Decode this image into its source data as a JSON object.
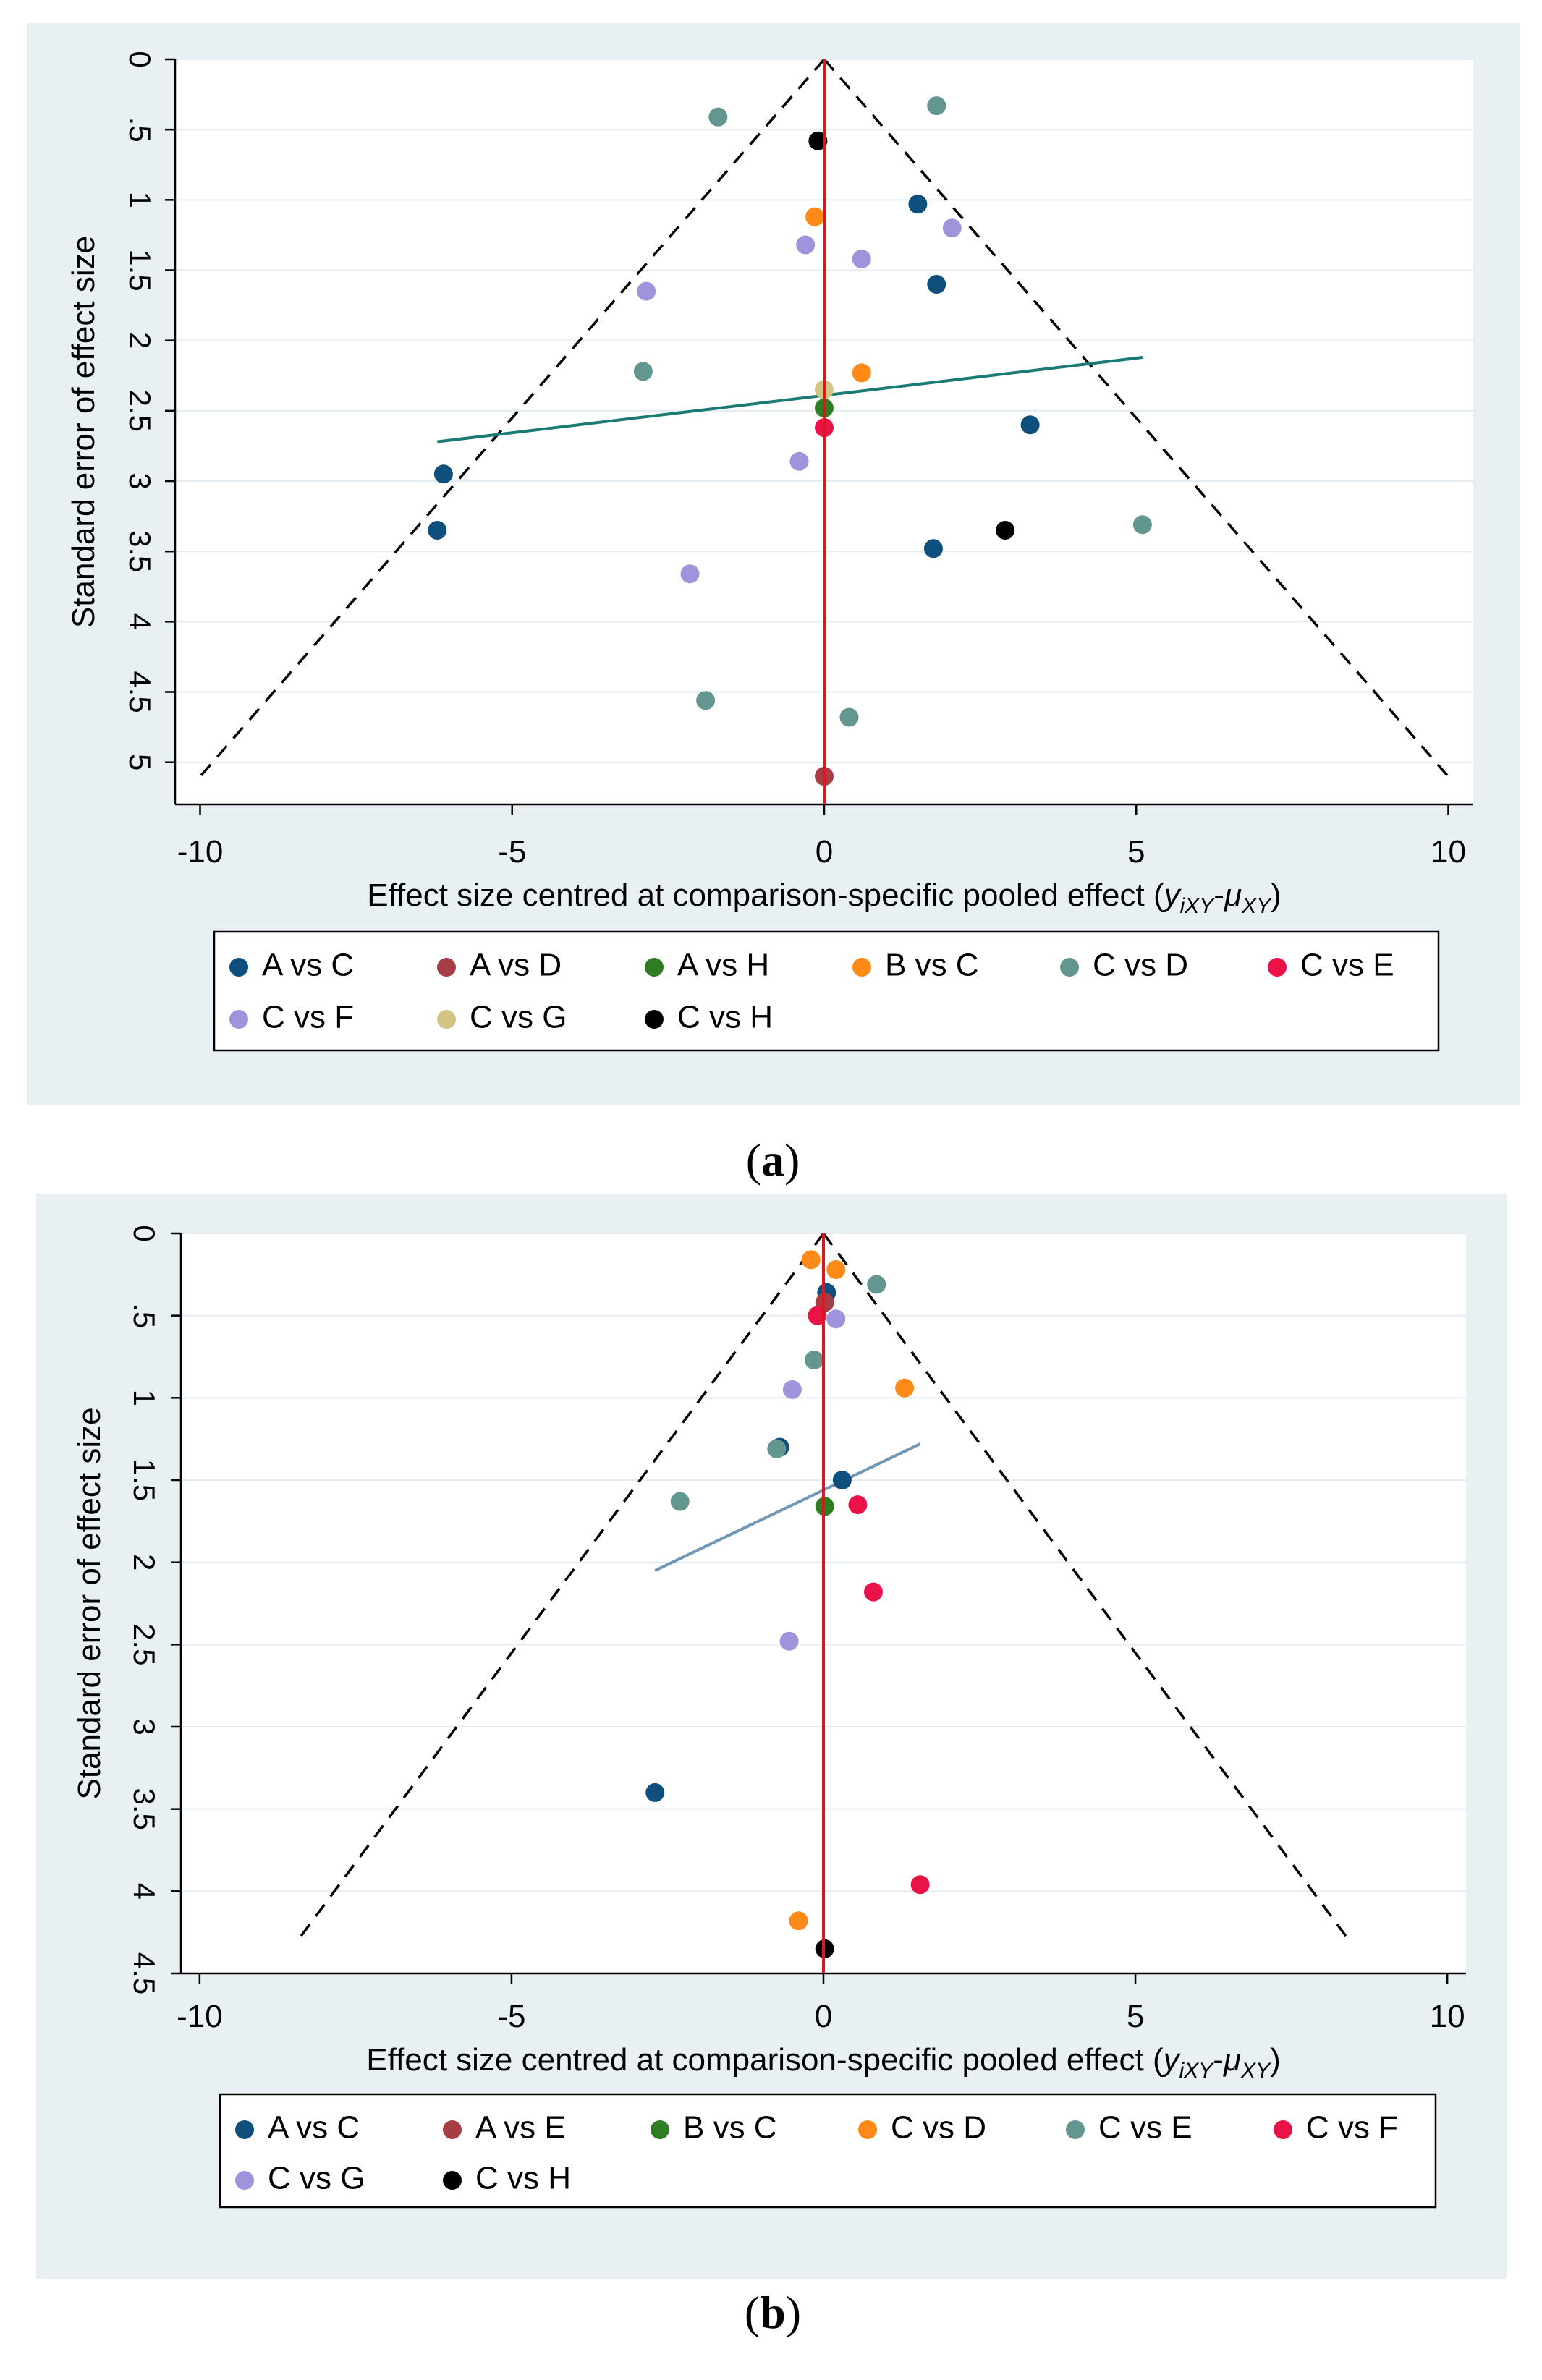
{
  "colors": {
    "panel_bg": "#e8f0f4",
    "plot_bg": "#ffffff",
    "gridline": "#e3ebf1",
    "axis": "#000000",
    "funnel": "#000000",
    "null_line": "#e0161f"
  },
  "chart_data": [
    {
      "type": "scatter",
      "panel": "a",
      "caption_letter": "a",
      "caption_open": "(",
      "caption_close": ")",
      "ylabel": "Standard error of effect size",
      "xlabel_main": "Effect size centred at comparison-specific pooled effect (",
      "xlabel_var1": "y",
      "xlabel_sub1": "iXY",
      "xlabel_minus": "-",
      "xlabel_var2": "μ",
      "xlabel_sub2": "XY",
      "xlabel_close": ")",
      "xlim": [
        -10.4,
        10.4
      ],
      "ylim": [
        0,
        5.3
      ],
      "y_reversed": true,
      "xticks": [
        -10,
        -5,
        0,
        5,
        10
      ],
      "xtick_labels": [
        "-10",
        "-5",
        "0",
        "5",
        "10"
      ],
      "yticks": [
        0,
        0.5,
        1,
        1.5,
        2,
        2.5,
        3,
        3.5,
        4,
        4.5,
        5
      ],
      "ytick_labels": [
        "0",
        ".5",
        "1",
        "1.5",
        "2",
        "2.5",
        "3",
        "3.5",
        "4",
        "4.5",
        "5"
      ],
      "funnel_max_se": 5.1,
      "funnel_slope": 1.96,
      "null_line_x": 0,
      "regression": {
        "x": [
          -6.2,
          5.1
        ],
        "y": [
          2.72,
          2.12
        ],
        "color": "#1b7a74"
      },
      "legend": [
        {
          "name": "A vs C",
          "color": "#0e4f7d"
        },
        {
          "name": "A vs D",
          "color": "#a83c44"
        },
        {
          "name": "A vs H",
          "color": "#2e7d23"
        },
        {
          "name": "B vs C",
          "color": "#ff8a18"
        },
        {
          "name": "C vs D",
          "color": "#62968e"
        },
        {
          "name": "C vs E",
          "color": "#ea1347"
        },
        {
          "name": "C vs F",
          "color": "#9f93dc"
        },
        {
          "name": "C vs G",
          "color": "#d1c484"
        },
        {
          "name": "C vs H",
          "color": "#000000"
        }
      ],
      "series": [
        {
          "name": "A vs C",
          "color": "#0e4f7d",
          "points": [
            [
              1.5,
              1.03
            ],
            [
              1.8,
              1.6
            ],
            [
              3.3,
              2.6
            ],
            [
              -6.1,
              2.95
            ],
            [
              -6.2,
              3.35
            ],
            [
              1.75,
              3.48
            ]
          ]
        },
        {
          "name": "A vs D",
          "color": "#a83c44",
          "points": [
            [
              0,
              5.1
            ]
          ]
        },
        {
          "name": "A vs H",
          "color": "#2e7d23",
          "points": [
            [
              0,
              2.48
            ]
          ]
        },
        {
          "name": "B vs C",
          "color": "#ff8a18",
          "points": [
            [
              -0.15,
              1.12
            ],
            [
              0.6,
              2.23
            ]
          ]
        },
        {
          "name": "C vs D",
          "color": "#62968e",
          "points": [
            [
              -1.7,
              0.41
            ],
            [
              1.8,
              0.33
            ],
            [
              -2.9,
              2.22
            ],
            [
              5.1,
              3.31
            ],
            [
              -1.9,
              4.56
            ],
            [
              0.4,
              4.68
            ]
          ]
        },
        {
          "name": "C vs E",
          "color": "#ea1347",
          "points": [
            [
              0,
              2.62
            ]
          ]
        },
        {
          "name": "C vs F",
          "color": "#9f93dc",
          "points": [
            [
              2.05,
              1.2
            ],
            [
              -0.3,
              1.32
            ],
            [
              0.6,
              1.42
            ],
            [
              -2.85,
              1.65
            ],
            [
              -0.4,
              2.86
            ],
            [
              -2.15,
              3.66
            ]
          ]
        },
        {
          "name": "C vs G",
          "color": "#d1c484",
          "points": [
            [
              0,
              2.35
            ]
          ]
        },
        {
          "name": "C vs H",
          "color": "#000000",
          "points": [
            [
              -0.1,
              0.58
            ],
            [
              2.9,
              3.35
            ]
          ]
        }
      ]
    },
    {
      "type": "scatter",
      "panel": "b",
      "caption_letter": "b",
      "caption_open": "(",
      "caption_close": ")",
      "ylabel": "Standard error of effect size",
      "xlabel_main": "Effect size centred at comparison-specific pooled effect (",
      "xlabel_var1": "y",
      "xlabel_sub1": "iXY",
      "xlabel_minus": "-",
      "xlabel_var2": "μ",
      "xlabel_sub2": "XY",
      "xlabel_close": ")",
      "xlim": [
        -10.3,
        10.3
      ],
      "ylim": [
        0,
        4.5
      ],
      "y_reversed": true,
      "xticks": [
        -10,
        -5,
        0,
        5,
        10
      ],
      "xtick_labels": [
        "-10",
        "-5",
        "0",
        "5",
        "10"
      ],
      "yticks": [
        0,
        0.5,
        1,
        1.5,
        2,
        2.5,
        3,
        3.5,
        4,
        4.5
      ],
      "ytick_labels": [
        "0",
        ".5",
        "1",
        "1.5",
        "2",
        "2.5",
        "3",
        "3.5",
        "4",
        "4.5"
      ],
      "funnel_max_se": 4.3,
      "funnel_slope": 1.96,
      "null_line_x": 0,
      "regression": {
        "x": [
          -2.7,
          1.55
        ],
        "y": [
          2.05,
          1.28
        ],
        "color": "#6f98b8"
      },
      "legend": [
        {
          "name": "A vs C",
          "color": "#0e4f7d"
        },
        {
          "name": "A vs E",
          "color": "#a83c44"
        },
        {
          "name": "B vs C",
          "color": "#2e7d23"
        },
        {
          "name": "C vs D",
          "color": "#ff8a18"
        },
        {
          "name": "C vs E",
          "color": "#62968e"
        },
        {
          "name": "C vs F",
          "color": "#ea1347"
        },
        {
          "name": "C vs G",
          "color": "#9f93dc"
        },
        {
          "name": "C vs H",
          "color": "#000000"
        }
      ],
      "series": [
        {
          "name": "A vs C",
          "color": "#0e4f7d",
          "points": [
            [
              0.05,
              0.36
            ],
            [
              -0.7,
              1.3
            ],
            [
              0.3,
              1.5
            ],
            [
              -2.7,
              3.4
            ]
          ]
        },
        {
          "name": "A vs E",
          "color": "#a83c44",
          "points": [
            [
              0.02,
              0.42
            ]
          ]
        },
        {
          "name": "B vs C",
          "color": "#2e7d23",
          "points": [
            [
              0.02,
              1.66
            ]
          ]
        },
        {
          "name": "C vs D",
          "color": "#ff8a18",
          "points": [
            [
              -0.2,
              0.16
            ],
            [
              0.2,
              0.22
            ],
            [
              1.3,
              0.94
            ],
            [
              -0.4,
              4.18
            ]
          ]
        },
        {
          "name": "C vs E",
          "color": "#62968e",
          "points": [
            [
              0.85,
              0.31
            ],
            [
              -0.15,
              0.77
            ],
            [
              -0.75,
              1.31
            ],
            [
              -2.3,
              1.63
            ]
          ]
        },
        {
          "name": "C vs F",
          "color": "#ea1347",
          "points": [
            [
              -0.1,
              0.5
            ],
            [
              0.55,
              1.65
            ],
            [
              0.8,
              2.18
            ],
            [
              1.55,
              3.96
            ]
          ]
        },
        {
          "name": "C vs G",
          "color": "#9f93dc",
          "points": [
            [
              0.2,
              0.52
            ],
            [
              -0.5,
              0.95
            ],
            [
              -0.55,
              2.48
            ]
          ]
        },
        {
          "name": "C vs H",
          "color": "#000000",
          "points": [
            [
              0.02,
              4.35
            ]
          ]
        }
      ]
    }
  ]
}
